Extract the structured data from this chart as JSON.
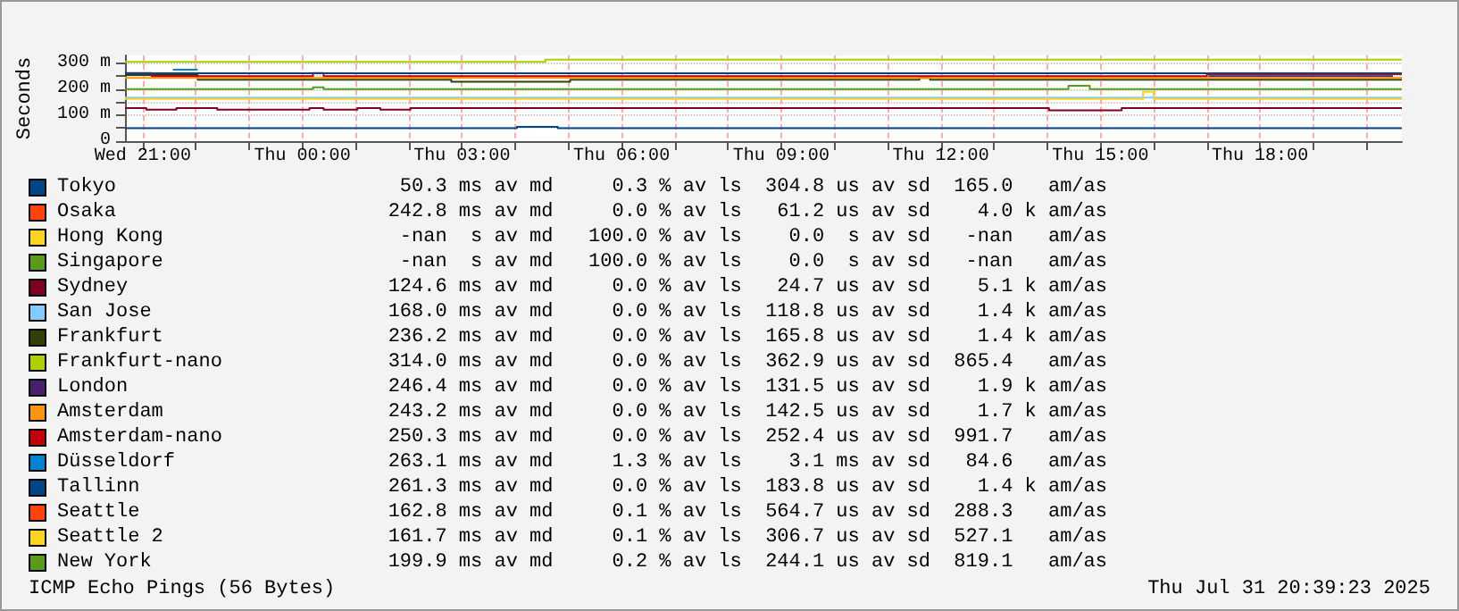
{
  "chart_data": {
    "type": "step",
    "ylabel": "Seconds",
    "xlim": [
      "2025-07-30T20:40",
      "2025-07-31T20:40"
    ],
    "xticks": [
      {
        "value": "2025-07-30T21:00",
        "label": "Wed 21:00"
      },
      {
        "value": "2025-07-30T22:00",
        "label": null
      },
      {
        "value": "2025-07-30T23:00",
        "label": null
      },
      {
        "value": "2025-07-31T00:00",
        "label": "Thu 00:00"
      },
      {
        "value": "2025-07-31T01:00",
        "label": null
      },
      {
        "value": "2025-07-31T02:00",
        "label": null
      },
      {
        "value": "2025-07-31T03:00",
        "label": "Thu 03:00"
      },
      {
        "value": "2025-07-31T04:00",
        "label": null
      },
      {
        "value": "2025-07-31T05:00",
        "label": null
      },
      {
        "value": "2025-07-31T06:00",
        "label": "Thu 06:00"
      },
      {
        "value": "2025-07-31T07:00",
        "label": null
      },
      {
        "value": "2025-07-31T08:00",
        "label": null
      },
      {
        "value": "2025-07-31T09:00",
        "label": "Thu 09:00"
      },
      {
        "value": "2025-07-31T10:00",
        "label": null
      },
      {
        "value": "2025-07-31T11:00",
        "label": null
      },
      {
        "value": "2025-07-31T12:00",
        "label": "Thu 12:00"
      },
      {
        "value": "2025-07-31T13:00",
        "label": null
      },
      {
        "value": "2025-07-31T14:00",
        "label": null
      },
      {
        "value": "2025-07-31T15:00",
        "label": "Thu 15:00"
      },
      {
        "value": "2025-07-31T16:00",
        "label": null
      },
      {
        "value": "2025-07-31T17:00",
        "label": null
      },
      {
        "value": "2025-07-31T18:00",
        "label": "Thu 18:00"
      },
      {
        "value": "2025-07-31T19:00",
        "label": null
      },
      {
        "value": "2025-07-31T20:00",
        "label": null
      }
    ],
    "ylim": [
      0,
      330
    ],
    "yticks": [
      0,
      {
        "value": 50,
        "label": null
      },
      {
        "value": 100,
        "label": "100 m"
      },
      {
        "value": 150,
        "label": null
      },
      {
        "value": 200,
        "label": "200 m"
      },
      {
        "value": 250,
        "label": null
      },
      {
        "value": 300,
        "label": "300 m"
      }
    ],
    "grid": true,
    "legend": "bottom",
    "marker": "none",
    "series": [
      {
        "name": "Tokyo",
        "color": "#004586",
        "x": [
          "2025-07-30T20:40",
          "2025-07-31T04:02",
          "2025-07-31T04:48",
          "2025-07-31T20:40"
        ],
        "values": [
          50,
          55,
          50,
          50
        ]
      },
      {
        "name": "Osaka",
        "color": "#ff420e"
      },
      {
        "name": "Hong Kong",
        "color": "#ffd320"
      },
      {
        "name": "Singapore",
        "color": "#579d1c"
      },
      {
        "name": "Sydney",
        "color": "#7e0021",
        "x": [
          "2025-07-30T20:40",
          "2025-07-30T21:04",
          "2025-07-30T21:38",
          "2025-07-30T22:24",
          "2025-07-31T00:08",
          "2025-07-31T00:24",
          "2025-07-31T01:02",
          "2025-07-31T01:28",
          "2025-07-31T02:02",
          "2025-07-31T14:02",
          "2025-07-31T15:24",
          "2025-07-31T20:40"
        ],
        "values": [
          127,
          121,
          127,
          121,
          127,
          121,
          127,
          121,
          127,
          119,
          127,
          127
        ]
      },
      {
        "name": "San Jose",
        "color": "#83caff",
        "x": [
          "2025-07-30T20:40",
          "2025-07-31T20:40"
        ],
        "values": [
          168,
          168
        ]
      },
      {
        "name": "Frankfurt",
        "color": "#314004",
        "x": [
          "2025-07-30T20:40",
          "2025-07-30T22:02",
          "2025-07-31T02:48",
          "2025-07-31T05:02",
          "2025-07-31T11:36",
          "2025-07-31T11:48",
          "2025-07-31T20:40"
        ],
        "values": [
          254,
          236,
          229,
          236,
          243,
          236,
          236
        ]
      },
      {
        "name": "Frankfurt-nano",
        "color": "#aecf00",
        "x": [
          "2025-07-30T20:40",
          "2025-07-31T00:00",
          "2025-07-31T04:34",
          "2025-07-31T12:00",
          "2025-07-31T20:40"
        ],
        "values": [
          305,
          305,
          314,
          314,
          314
        ]
      },
      {
        "name": "London",
        "color": "#4b1f6f",
        "x": [
          "2025-07-31T17:02",
          "2025-07-31T20:30"
        ],
        "values": [
          250,
          250
        ]
      },
      {
        "name": "Amsterdam",
        "color": "#ff950e",
        "x": [
          "2025-07-30T20:40",
          "2025-07-31T20:40"
        ],
        "values": [
          243,
          243
        ]
      },
      {
        "name": "Amsterdam-nano",
        "color": "#c5000b",
        "x": [
          "2025-07-30T20:40",
          "2025-07-30T21:10",
          "2025-07-31T00:12",
          "2025-07-31T00:24",
          "2025-07-31T17:00",
          "2025-07-31T20:40"
        ],
        "values": [
          262,
          250,
          262,
          250,
          258,
          258
        ]
      },
      {
        "name": "Düsseldorf",
        "color": "#0084d1",
        "x": [
          "2025-07-30T21:34",
          "2025-07-30T22:02"
        ],
        "values": [
          275,
          275
        ]
      },
      {
        "name": "Tallinn",
        "color": "#004586",
        "x": [
          "2025-07-30T20:40",
          "2025-07-31T20:40"
        ],
        "values": [
          261,
          261
        ]
      },
      {
        "name": "Seattle",
        "color": "#ff420e"
      },
      {
        "name": "Seattle 2",
        "color": "#ffd320",
        "x": [
          "2025-07-30T20:40",
          "2025-07-31T15:48",
          "2025-07-31T16:00",
          "2025-07-31T20:40"
        ],
        "values": [
          162,
          190,
          162,
          162
        ]
      },
      {
        "name": "New York",
        "color": "#579d1c",
        "x": [
          "2025-07-30T20:40",
          "2025-07-31T00:12",
          "2025-07-31T00:24",
          "2025-07-31T14:24",
          "2025-07-31T14:48",
          "2025-07-31T20:40"
        ],
        "values": [
          200,
          207,
          200,
          213,
          200,
          200
        ]
      }
    ],
    "annotations": [
      "50.3 ms av md     0.3 % av ls  304.8 us av sd  165.0   am/as",
      "242.8 ms av md     0.0 % av ls   61.2 us av sd    4.0 k am/as",
      "-nan  s av md   100.0 % av ls    0.0  s av sd   -nan   am/as",
      "-nan  s av md   100.0 % av ls    0.0  s av sd   -nan   am/as",
      "124.6 ms av md     0.0 % av ls   24.7 us av sd    5.1 k am/as",
      "168.0 ms av md     0.0 % av ls  118.8 us av sd    1.4 k am/as",
      "236.2 ms av md     0.0 % av ls  165.8 us av sd    1.4 k am/as",
      "314.0 ms av md     0.0 % av ls  362.9 us av sd  865.4   am/as",
      "246.4 ms av md     0.0 % av ls  131.5 us av sd    1.9 k am/as",
      "243.2 ms av md     0.0 % av ls  142.5 us av sd    1.7 k am/as",
      "250.3 ms av md     0.0 % av ls  252.4 us av sd  991.7   am/as",
      "263.1 ms av md     1.3 % av ls    3.1 ms av sd   84.6   am/as",
      "261.3 ms av md     0.0 % av ls  183.8 us av sd    1.4 k am/as",
      "162.8 ms av md     0.1 % av ls  564.7 us av sd  288.3   am/as",
      "161.7 ms av md     0.1 % av ls  306.7 us av sd  527.1   am/as",
      "199.9 ms av md     0.2 % av ls  244.1 us av sd  819.1   am/as",
      "ICMP Echo Pings (56 Bytes)",
      "Thu Jul 31 20:39:23 2025"
    ]
  }
}
